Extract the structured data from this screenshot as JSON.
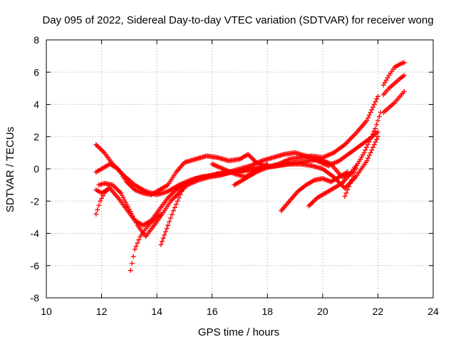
{
  "chart_data": {
    "type": "scatter",
    "title": "Day 095 of 2022, Sidereal Day-to-day VTEC variation (SDTVAR) for receiver wong",
    "xlabel": "GPS time / hours",
    "ylabel": "SDTVAR / TECUs",
    "xlim": [
      10,
      24
    ],
    "ylim": [
      -8,
      8
    ],
    "xticks": [
      "10",
      "12",
      "14",
      "16",
      "18",
      "20",
      "22",
      "24"
    ],
    "yticks": [
      "-8",
      "-6",
      "-4",
      "-2",
      "0",
      "2",
      "4",
      "6",
      "8"
    ],
    "grid": true,
    "legend": "none",
    "marker": "plus",
    "color": "#ff0000",
    "series": [
      {
        "x": [
          11.8,
          12.1,
          12.4,
          12.8,
          13.2,
          13.6,
          14.0,
          14.4,
          14.8,
          15.2,
          15.6,
          16.0,
          16.4,
          16.8,
          17.2,
          17.6,
          18.0,
          18.4,
          18.8,
          19.2,
          19.6,
          20.0,
          20.4,
          20.8,
          21.2,
          21.6,
          22.0
        ],
        "y": [
          1.5,
          1.0,
          0.3,
          -0.4,
          -1.0,
          -1.4,
          -1.6,
          -1.4,
          -1.0,
          -0.7,
          -0.5,
          -0.4,
          -0.3,
          -0.2,
          -0.1,
          0.0,
          0.1,
          0.2,
          0.3,
          0.3,
          0.2,
          0.0,
          -0.5,
          -1.2,
          -0.5,
          0.5,
          2.0
        ]
      },
      {
        "x": [
          11.8,
          12.0,
          12.3,
          12.6,
          12.9,
          13.2,
          13.5,
          13.8,
          14.1,
          14.4,
          14.7,
          15.0,
          15.4,
          15.8,
          16.2,
          16.6,
          17.0,
          17.3,
          17.6,
          18.0,
          18.4,
          18.8,
          19.2,
          19.6,
          20.0,
          20.4,
          20.8,
          21.2,
          21.6,
          22.0
        ],
        "y": [
          -0.2,
          0.0,
          0.3,
          0.0,
          -0.8,
          -1.3,
          -1.5,
          -1.6,
          -1.3,
          -1.0,
          -0.2,
          0.4,
          0.6,
          0.8,
          0.7,
          0.5,
          0.6,
          0.9,
          0.4,
          0.1,
          0.3,
          0.6,
          0.7,
          0.8,
          0.7,
          1.0,
          1.5,
          2.2,
          3.0,
          4.5
        ]
      },
      {
        "x": [
          11.8,
          12.0,
          12.3,
          12.6,
          12.9,
          13.2,
          13.5,
          13.8,
          14.1,
          14.4,
          14.7,
          15.0,
          15.4,
          15.8,
          16.2,
          16.6,
          17.0,
          17.4,
          17.8,
          18.2,
          18.6,
          19.0,
          19.4,
          19.8,
          20.2,
          20.6,
          21.0,
          21.4,
          21.8,
          22.0
        ],
        "y": [
          -1.3,
          -1.5,
          -1.2,
          -1.8,
          -2.5,
          -3.2,
          -3.5,
          -3.2,
          -2.5,
          -1.8,
          -1.3,
          -1.0,
          -0.6,
          -0.5,
          -0.3,
          -0.2,
          0.0,
          0.2,
          0.5,
          0.7,
          0.9,
          1.0,
          0.8,
          0.5,
          0.2,
          0.5,
          1.0,
          1.5,
          2.0,
          2.3
        ]
      },
      {
        "x": [
          11.9,
          12.1,
          12.4,
          12.7,
          13.0,
          13.3,
          13.6,
          13.9,
          14.2,
          14.5,
          14.8,
          15.1,
          15.5,
          15.9,
          16.3,
          16.7,
          17.1,
          17.5,
          17.9,
          18.3,
          18.7,
          19.1,
          19.5,
          19.9,
          20.3,
          20.7,
          21.1,
          21.5,
          21.9,
          22.1
        ],
        "y": [
          -1.0,
          -0.9,
          -1.0,
          -1.5,
          -2.5,
          -3.5,
          -4.2,
          -3.5,
          -2.8,
          -2.0,
          -1.5,
          -1.0,
          -0.7,
          -0.5,
          -0.4,
          -0.2,
          -0.1,
          0.0,
          0.1,
          0.2,
          0.3,
          0.4,
          0.5,
          0.6,
          0.3,
          -0.5,
          -0.2,
          1.0,
          2.5,
          3.5
        ]
      },
      {
        "x": [
          11.8,
          11.95,
          12.1,
          12.25
        ],
        "y": [
          -2.8,
          -2.0,
          -1.5,
          -1.2
        ]
      },
      {
        "x": [
          13.05,
          13.2,
          13.4,
          13.6,
          13.8,
          14.0,
          14.15
        ],
        "y": [
          -6.3,
          -5.0,
          -4.2,
          -3.7,
          -3.3,
          -3.0,
          -2.8
        ]
      },
      {
        "x": [
          14.15,
          14.4,
          14.6,
          14.8,
          15.0
        ],
        "y": [
          -4.7,
          -3.5,
          -2.6,
          -1.8,
          -1.0
        ]
      },
      {
        "x": [
          16.0,
          16.4,
          16.8,
          17.2,
          17.6,
          18.0
        ],
        "y": [
          0.3,
          0.0,
          -0.3,
          -0.5,
          -0.1,
          0.3
        ]
      },
      {
        "x": [
          16.8,
          17.2,
          17.6,
          18.0
        ],
        "y": [
          -1.0,
          -0.6,
          -0.2,
          0.1
        ]
      },
      {
        "x": [
          18.5,
          18.8,
          19.1,
          19.4,
          19.7,
          20.0,
          20.3,
          20.6,
          20.9
        ],
        "y": [
          -2.6,
          -2.0,
          -1.4,
          -1.0,
          -0.7,
          -0.6,
          -0.8,
          -0.5,
          -0.2
        ]
      },
      {
        "x": [
          19.5,
          19.8,
          20.1,
          20.4,
          20.7,
          21.0,
          21.2
        ],
        "y": [
          -2.3,
          -1.8,
          -1.5,
          -1.2,
          -0.9,
          -0.3,
          0.2
        ]
      },
      {
        "x": [
          20.8,
          21.0,
          21.2
        ],
        "y": [
          -1.7,
          -0.9,
          0.0
        ]
      },
      {
        "x": [
          22.2,
          22.4,
          22.6,
          22.8,
          22.95
        ],
        "y": [
          5.2,
          5.8,
          6.3,
          6.5,
          6.6
        ]
      },
      {
        "x": [
          22.2,
          22.4,
          22.6,
          22.8,
          22.95
        ],
        "y": [
          4.6,
          5.0,
          5.3,
          5.6,
          5.8
        ]
      },
      {
        "x": [
          22.2,
          22.4,
          22.6,
          22.8,
          22.95
        ],
        "y": [
          3.5,
          3.8,
          4.1,
          4.5,
          4.8
        ]
      }
    ]
  }
}
